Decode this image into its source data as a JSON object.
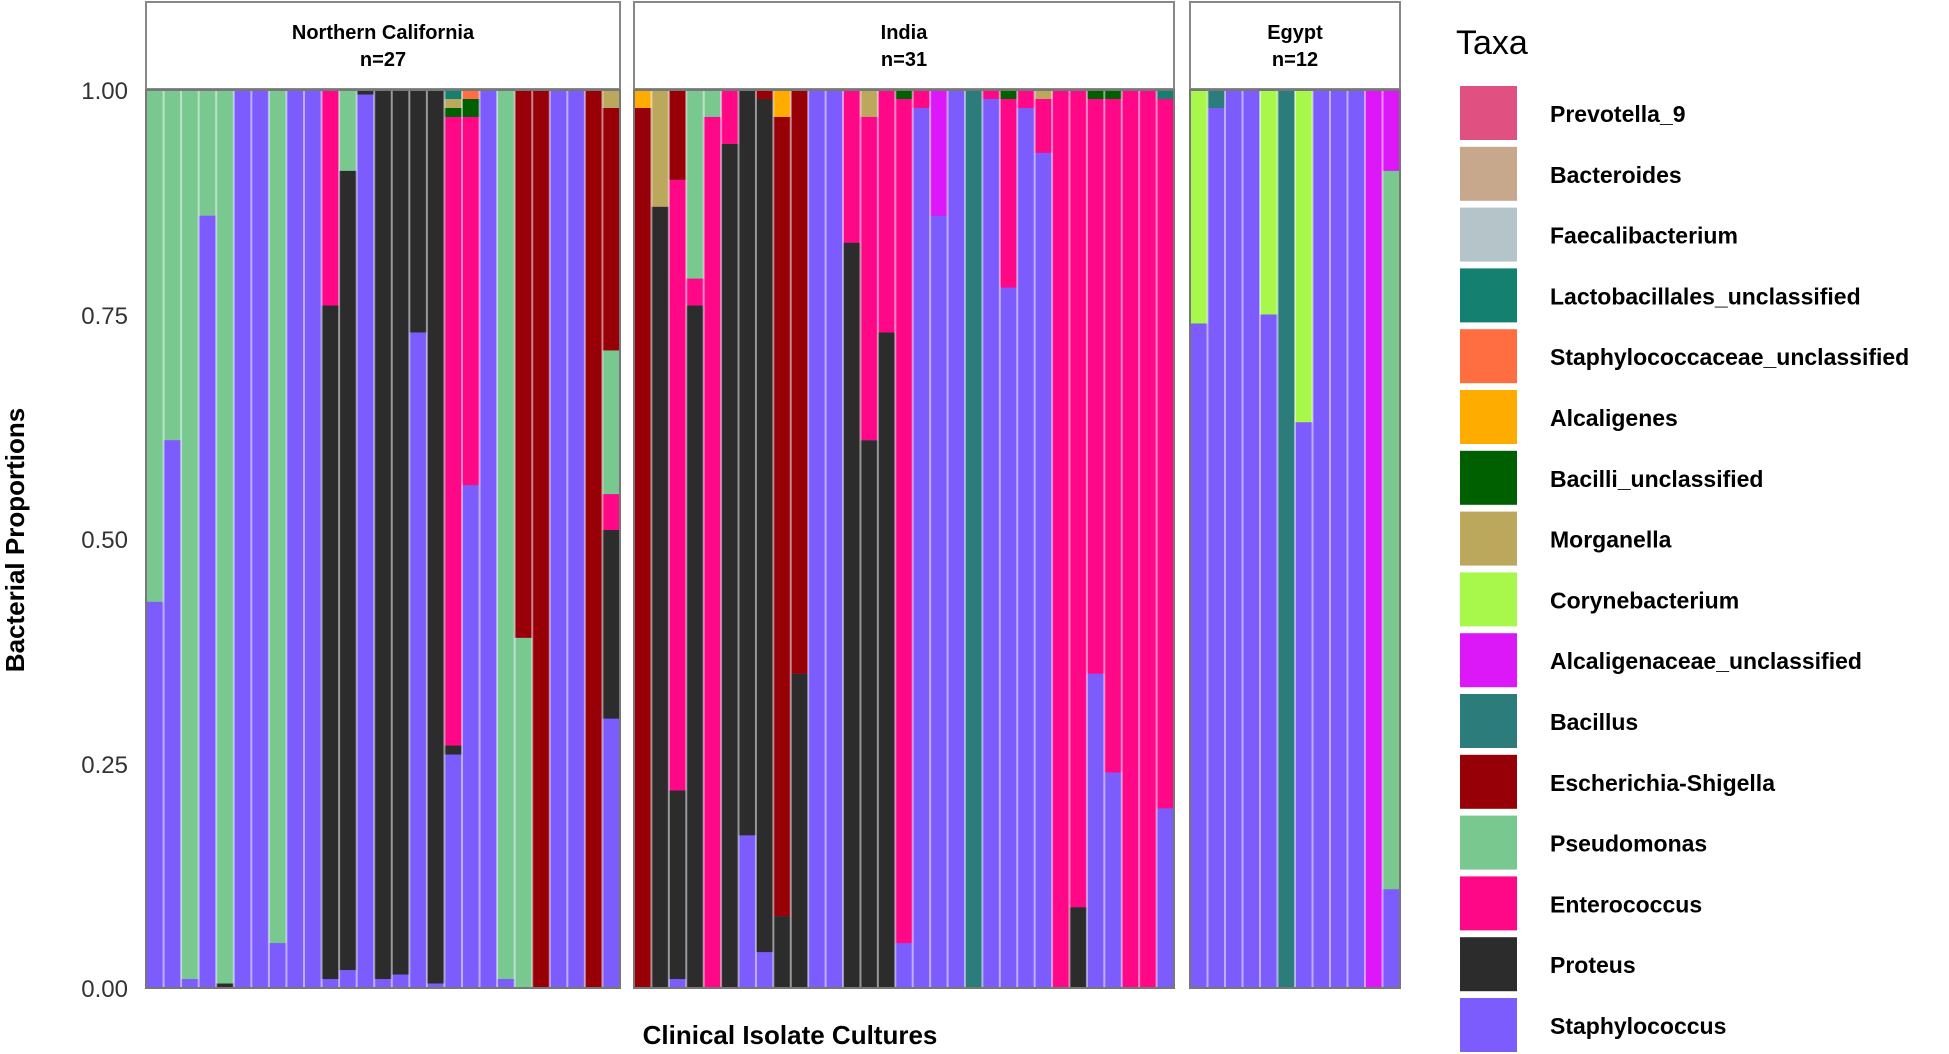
{
  "chart_data": {
    "type": "bar",
    "stacked": true,
    "xlabel": "Clinical Isolate Cultures",
    "ylabel": "Bacterial Proportions",
    "ylim": [
      0,
      1
    ],
    "yticks": [
      "0.00",
      "0.25",
      "0.50",
      "0.75",
      "1.00"
    ],
    "legend": {
      "title": "Taxa",
      "position": "right",
      "entries": [
        {
          "name": "Prevotella_9",
          "color": "#E05080"
        },
        {
          "name": "Bacteroides",
          "color": "#C8A88C"
        },
        {
          "name": "Faecalibacterium",
          "color": "#B4C4C8"
        },
        {
          "name": "Lactobacillales_unclassified",
          "color": "#138070"
        },
        {
          "name": "Staphylococcaceae_unclassified",
          "color": "#FF6E40"
        },
        {
          "name": "Alcaligenes",
          "color": "#FFAC00"
        },
        {
          "name": "Bacilli_unclassified",
          "color": "#006000"
        },
        {
          "name": "Morganella",
          "color": "#BCA85C"
        },
        {
          "name": "Corynebacterium",
          "color": "#A8F84C"
        },
        {
          "name": "Alcaligenaceae_unclassified",
          "color": "#DC18F8"
        },
        {
          "name": "Bacillus",
          "color": "#2C7C7C"
        },
        {
          "name": "Escherichia-Shigella",
          "color": "#980008"
        },
        {
          "name": "Pseudomonas",
          "color": "#78C890"
        },
        {
          "name": "Enterococcus",
          "color": "#FF0888"
        },
        {
          "name": "Proteus",
          "color": "#2C2C2C"
        },
        {
          "name": "Staphylococcus",
          "color": "#7C5CFC"
        }
      ]
    },
    "panels": [
      {
        "title": "Northern California",
        "subtitle": "n=27",
        "bars": [
          [
            [
              "Staphylococcus",
              0.43
            ],
            [
              "Pseudomonas",
              0.57
            ]
          ],
          [
            [
              "Staphylococcus",
              0.61
            ],
            [
              "Pseudomonas",
              0.39
            ]
          ],
          [
            [
              "Staphylococcus",
              0.01
            ],
            [
              "Pseudomonas",
              0.99
            ]
          ],
          [
            [
              "Staphylococcus",
              0.86
            ],
            [
              "Pseudomonas",
              0.14
            ]
          ],
          [
            [
              "Proteus",
              0.005
            ],
            [
              "Pseudomonas",
              0.995
            ]
          ],
          [
            [
              "Staphylococcus",
              1.0
            ]
          ],
          [
            [
              "Staphylococcus",
              1.0
            ]
          ],
          [
            [
              "Staphylococcus",
              0.05
            ],
            [
              "Pseudomonas",
              0.95
            ]
          ],
          [
            [
              "Staphylococcus",
              1.0
            ]
          ],
          [
            [
              "Staphylococcus",
              1.0
            ]
          ],
          [
            [
              "Staphylococcus",
              0.01
            ],
            [
              "Proteus",
              0.75
            ],
            [
              "Enterococcus",
              0.24
            ]
          ],
          [
            [
              "Staphylococcus",
              0.02
            ],
            [
              "Proteus",
              0.89
            ],
            [
              "Pseudomonas",
              0.09
            ]
          ],
          [
            [
              "Staphylococcus",
              0.995
            ],
            [
              "Proteus",
              0.005
            ]
          ],
          [
            [
              "Staphylococcus",
              0.01
            ],
            [
              "Proteus",
              0.99
            ]
          ],
          [
            [
              "Staphylococcus",
              0.015
            ],
            [
              "Proteus",
              0.985
            ]
          ],
          [
            [
              "Staphylococcus",
              0.73
            ],
            [
              "Proteus",
              0.27
            ]
          ],
          [
            [
              "Staphylococcus",
              0.005
            ],
            [
              "Proteus",
              0.995
            ]
          ],
          [
            [
              "Staphylococcus",
              0.26
            ],
            [
              "Proteus",
              0.01
            ],
            [
              "Enterococcus",
              0.7
            ],
            [
              "Bacilli_unclassified",
              0.01
            ],
            [
              "Morganella",
              0.01
            ],
            [
              "Lactobacillales_unclassified",
              0.01
            ]
          ],
          [
            [
              "Staphylococcus",
              0.56
            ],
            [
              "Enterococcus",
              0.41
            ],
            [
              "Bacilli_unclassified",
              0.02
            ],
            [
              "Staphylococcaceae_unclassified",
              0.01
            ]
          ],
          [
            [
              "Staphylococcus",
              1.0
            ]
          ],
          [
            [
              "Staphylococcus",
              0.01
            ],
            [
              "Pseudomonas",
              0.99
            ]
          ],
          [
            [
              "Pseudomonas",
              0.39
            ],
            [
              "Escherichia-Shigella",
              0.61
            ]
          ],
          [
            [
              "Escherichia-Shigella",
              1.0
            ]
          ],
          [
            [
              "Staphylococcus",
              1.0
            ]
          ],
          [
            [
              "Staphylococcus",
              1.0
            ]
          ],
          [
            [
              "Escherichia-Shigella",
              1.0
            ]
          ],
          [
            [
              "Staphylococcus",
              0.3
            ],
            [
              "Proteus",
              0.21
            ],
            [
              "Enterococcus",
              0.04
            ],
            [
              "Pseudomonas",
              0.16
            ],
            [
              "Escherichia-Shigella",
              0.27
            ],
            [
              "Morganella",
              0.02
            ]
          ]
        ]
      },
      {
        "title": "India",
        "subtitle": "n=31",
        "bars": [
          [
            [
              "Escherichia-Shigella",
              0.98
            ],
            [
              "Alcaligenes",
              0.02
            ]
          ],
          [
            [
              "Proteus",
              0.87
            ],
            [
              "Morganella",
              0.13
            ]
          ],
          [
            [
              "Staphylococcus",
              0.01
            ],
            [
              "Proteus",
              0.21
            ],
            [
              "Enterococcus",
              0.68
            ],
            [
              "Escherichia-Shigella",
              0.1
            ]
          ],
          [
            [
              "Proteus",
              0.76
            ],
            [
              "Enterococcus",
              0.03
            ],
            [
              "Pseudomonas",
              0.21
            ]
          ],
          [
            [
              "Enterococcus",
              0.97
            ],
            [
              "Pseudomonas",
              0.03
            ]
          ],
          [
            [
              "Proteus",
              0.94
            ],
            [
              "Enterococcus",
              0.06
            ]
          ],
          [
            [
              "Staphylococcus",
              0.17
            ],
            [
              "Proteus",
              0.83
            ]
          ],
          [
            [
              "Staphylococcus",
              0.04
            ],
            [
              "Proteus",
              0.95
            ],
            [
              "Escherichia-Shigella",
              0.01
            ]
          ],
          [
            [
              "Proteus",
              0.08
            ],
            [
              "Escherichia-Shigella",
              0.89
            ],
            [
              "Alcaligenes",
              0.03
            ]
          ],
          [
            [
              "Proteus",
              0.35
            ],
            [
              "Escherichia-Shigella",
              0.65
            ]
          ],
          [
            [
              "Staphylococcus",
              1.0
            ]
          ],
          [
            [
              "Staphylococcus",
              1.0
            ]
          ],
          [
            [
              "Proteus",
              0.83
            ],
            [
              "Enterococcus",
              0.17
            ]
          ],
          [
            [
              "Proteus",
              0.61
            ],
            [
              "Enterococcus",
              0.36
            ],
            [
              "Morganella",
              0.03
            ]
          ],
          [
            [
              "Proteus",
              0.73
            ],
            [
              "Enterococcus",
              0.27
            ]
          ],
          [
            [
              "Staphylococcus",
              0.05
            ],
            [
              "Enterococcus",
              0.94
            ],
            [
              "Bacilli_unclassified",
              0.01
            ]
          ],
          [
            [
              "Staphylococcus",
              0.98
            ],
            [
              "Enterococcus",
              0.02
            ]
          ],
          [
            [
              "Staphylococcus",
              0.86
            ],
            [
              "Alcaligenaceae_unclassified",
              0.14
            ]
          ],
          [
            [
              "Staphylococcus",
              1.0
            ]
          ],
          [
            [
              "Bacillus",
              1.0
            ]
          ],
          [
            [
              "Staphylococcus",
              0.99
            ],
            [
              "Enterococcus",
              0.01
            ]
          ],
          [
            [
              "Staphylococcus",
              0.78
            ],
            [
              "Enterococcus",
              0.21
            ],
            [
              "Bacilli_unclassified",
              0.01
            ]
          ],
          [
            [
              "Staphylococcus",
              0.98
            ],
            [
              "Enterococcus",
              0.02
            ]
          ],
          [
            [
              "Staphylococcus",
              0.93
            ],
            [
              "Enterococcus",
              0.06
            ],
            [
              "Morganella",
              0.01
            ]
          ],
          [
            [
              "Enterococcus",
              1.0
            ]
          ],
          [
            [
              "Proteus",
              0.09
            ],
            [
              "Enterococcus",
              0.91
            ]
          ],
          [
            [
              "Staphylococcus",
              0.35
            ],
            [
              "Enterococcus",
              0.64
            ],
            [
              "Bacilli_unclassified",
              0.01
            ]
          ],
          [
            [
              "Staphylococcus",
              0.24
            ],
            [
              "Enterococcus",
              0.75
            ],
            [
              "Bacilli_unclassified",
              0.01
            ]
          ],
          [
            [
              "Enterococcus",
              1.0
            ]
          ],
          [
            [
              "Enterococcus",
              1.0
            ]
          ],
          [
            [
              "Staphylococcus",
              0.2
            ],
            [
              "Enterococcus",
              0.79
            ],
            [
              "Lactobacillales_unclassified",
              0.01
            ]
          ]
        ]
      },
      {
        "title": "Egypt",
        "subtitle": "n=12",
        "bars": [
          [
            [
              "Staphylococcus",
              0.74
            ],
            [
              "Corynebacterium",
              0.26
            ]
          ],
          [
            [
              "Staphylococcus",
              0.98
            ],
            [
              "Bacillus",
              0.02
            ]
          ],
          [
            [
              "Staphylococcus",
              1.0
            ]
          ],
          [
            [
              "Staphylococcus",
              1.0
            ]
          ],
          [
            [
              "Staphylococcus",
              0.75
            ],
            [
              "Corynebacterium",
              0.25
            ]
          ],
          [
            [
              "Bacillus",
              1.0
            ]
          ],
          [
            [
              "Staphylococcus",
              0.63
            ],
            [
              "Corynebacterium",
              0.37
            ]
          ],
          [
            [
              "Staphylococcus",
              1.0
            ]
          ],
          [
            [
              "Staphylococcus",
              1.0
            ]
          ],
          [
            [
              "Staphylococcus",
              1.0
            ]
          ],
          [
            [
              "Alcaligenaceae_unclassified",
              1.0
            ]
          ],
          [
            [
              "Staphylococcus",
              0.11
            ],
            [
              "Pseudomonas",
              0.8
            ],
            [
              "Alcaligenaceae_unclassified",
              0.09
            ]
          ]
        ]
      }
    ]
  }
}
